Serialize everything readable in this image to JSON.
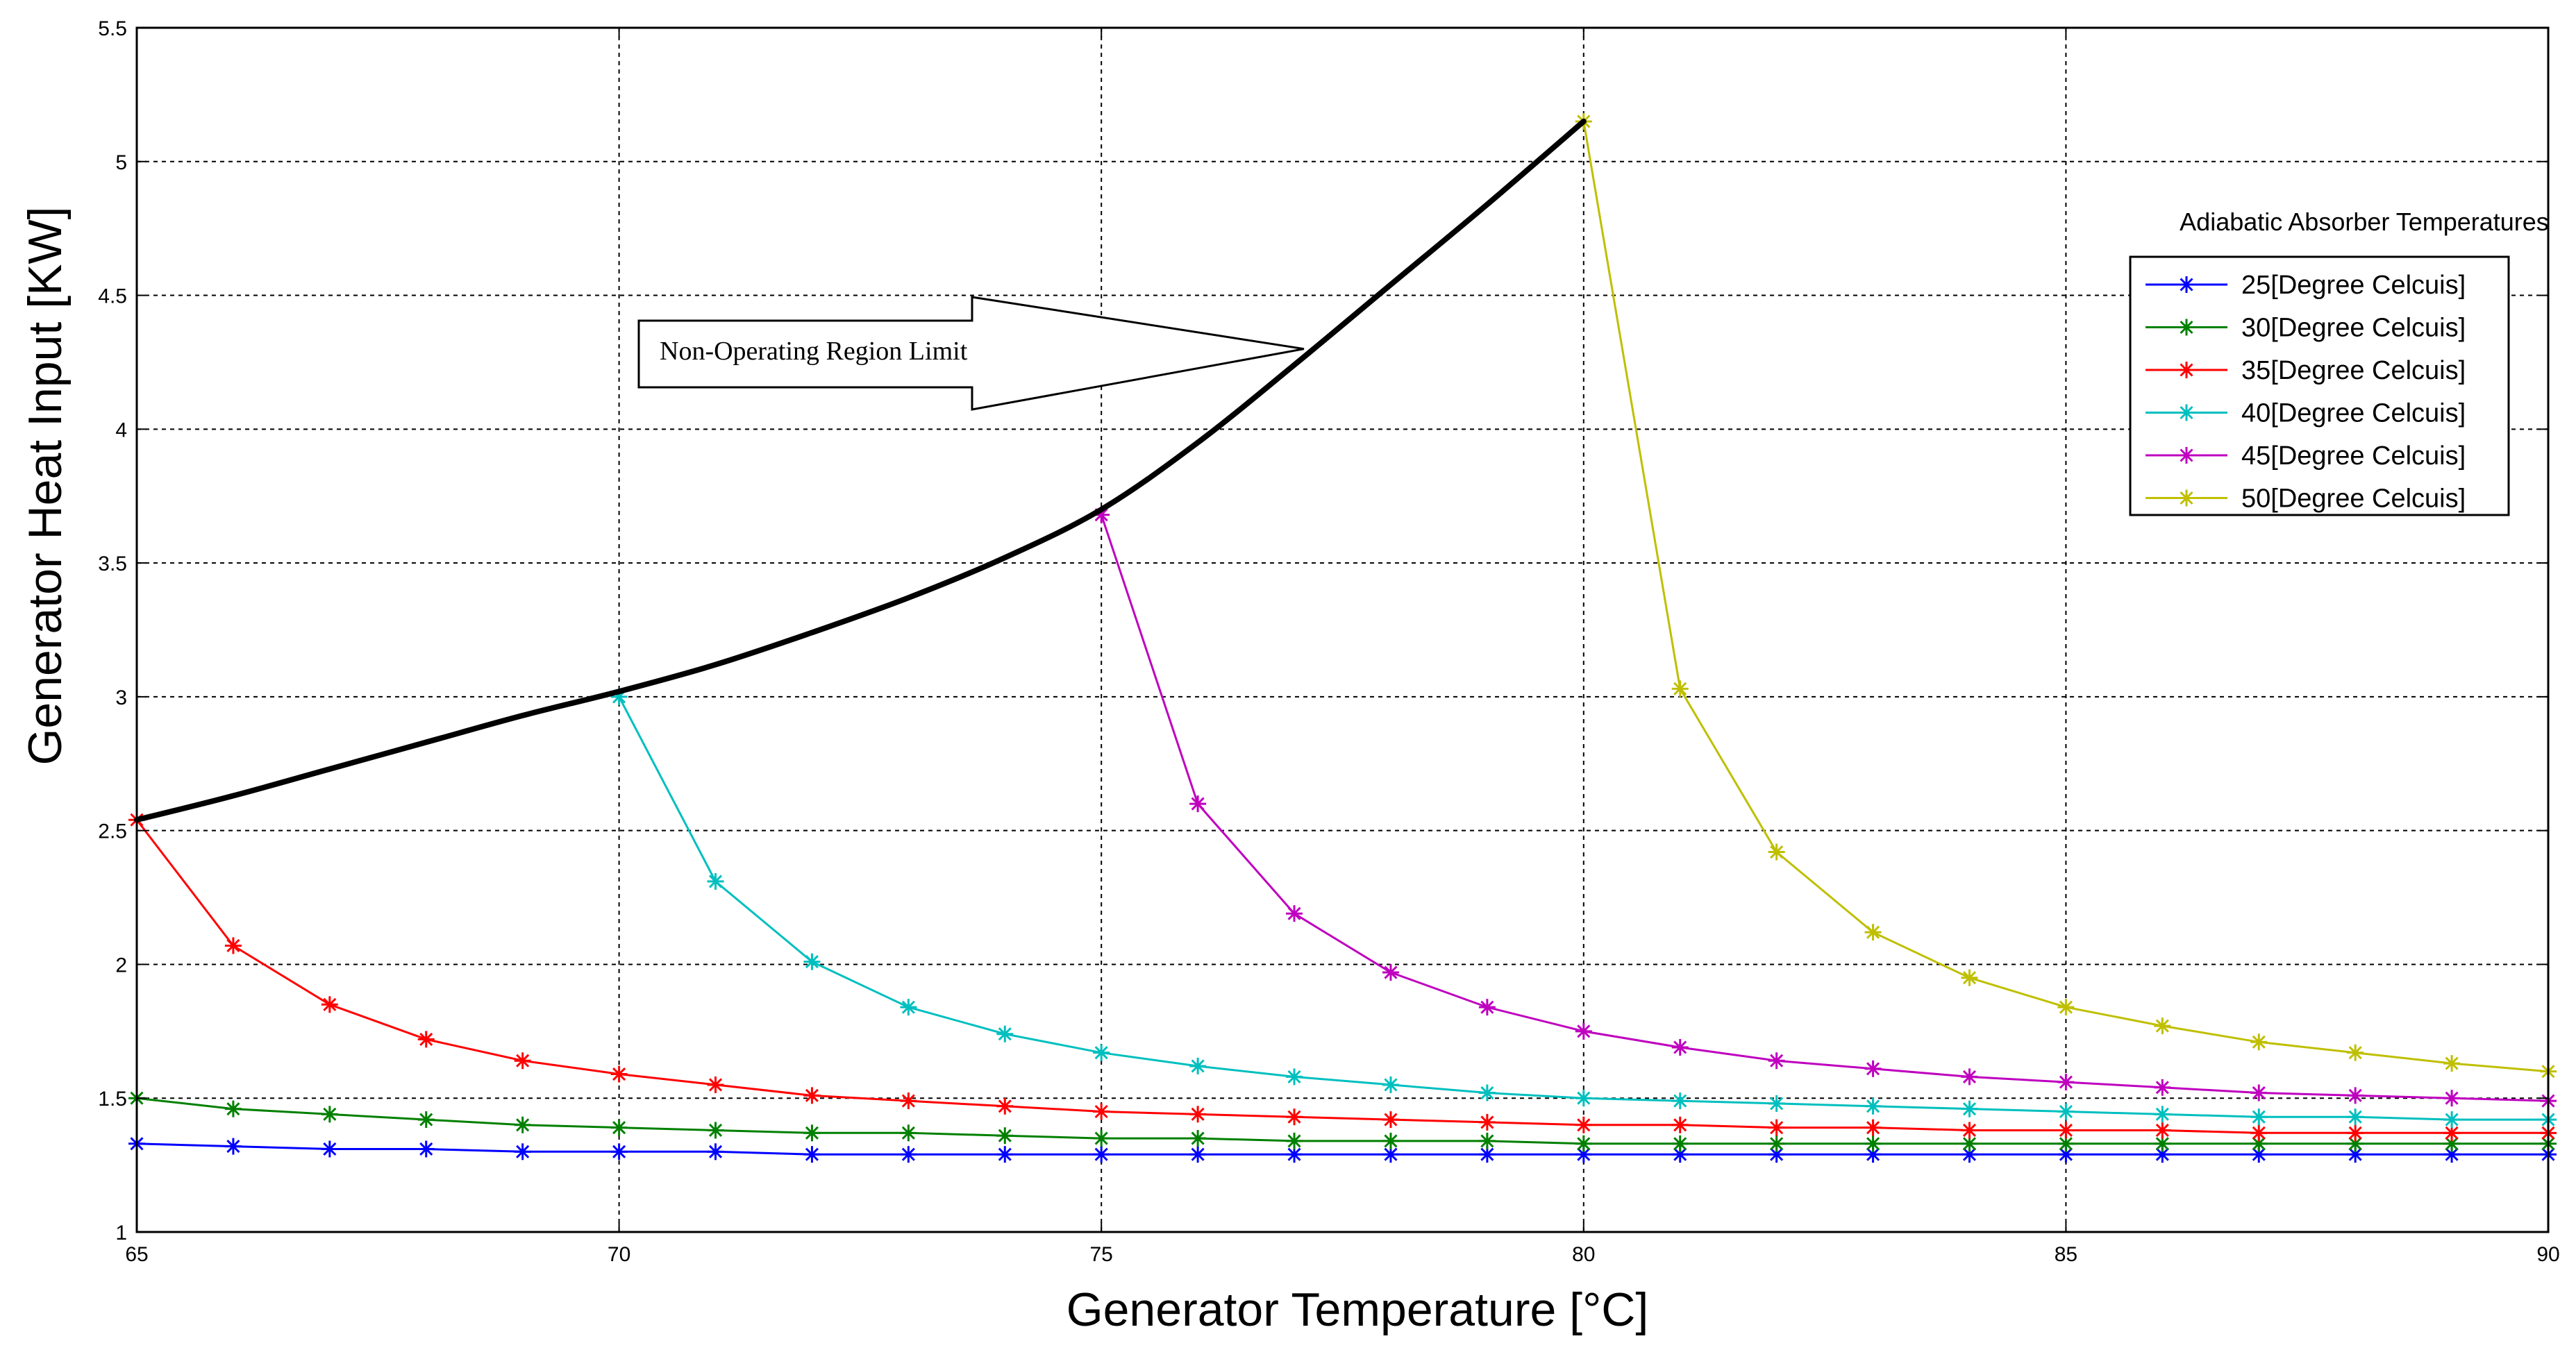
{
  "chart_data": {
    "type": "line",
    "title": "",
    "xlabel": "Generator Temperature [°C]",
    "ylabel": "Generator Heat Input [KW]",
    "xlim": [
      65,
      90
    ],
    "ylim": [
      1,
      5.5
    ],
    "xticks": [
      65,
      70,
      75,
      80,
      85,
      90
    ],
    "yticks": [
      1,
      1.5,
      2,
      2.5,
      3,
      3.5,
      4,
      4.5,
      5,
      5.5
    ],
    "xtick_labels": [
      "65",
      "70",
      "75",
      "80",
      "85",
      "90"
    ],
    "ytick_labels": [
      "1",
      "1.5",
      "2",
      "2.5",
      "3",
      "3.5",
      "4",
      "4.5",
      "5",
      "5.5"
    ],
    "grid": true,
    "legend_title": "Adiabatic Absorber Temperatures",
    "legend_position": "right",
    "series": [
      {
        "name": "25[Degree Celcuis]",
        "color": "#0000ff",
        "marker": "asterisk",
        "x": [
          65,
          66,
          67,
          68,
          69,
          70,
          71,
          72,
          73,
          74,
          75,
          76,
          77,
          78,
          79,
          80,
          81,
          82,
          83,
          84,
          85,
          86,
          87,
          88,
          89,
          90
        ],
        "y": [
          1.33,
          1.32,
          1.31,
          1.31,
          1.3,
          1.3,
          1.3,
          1.29,
          1.29,
          1.29,
          1.29,
          1.29,
          1.29,
          1.29,
          1.29,
          1.29,
          1.29,
          1.29,
          1.29,
          1.29,
          1.29,
          1.29,
          1.29,
          1.29,
          1.29,
          1.29
        ]
      },
      {
        "name": "30[Degree Celcuis]",
        "color": "#008000",
        "marker": "asterisk",
        "x": [
          65,
          66,
          67,
          68,
          69,
          70,
          71,
          72,
          73,
          74,
          75,
          76,
          77,
          78,
          79,
          80,
          81,
          82,
          83,
          84,
          85,
          86,
          87,
          88,
          89,
          90
        ],
        "y": [
          1.5,
          1.46,
          1.44,
          1.42,
          1.4,
          1.39,
          1.38,
          1.37,
          1.37,
          1.36,
          1.35,
          1.35,
          1.34,
          1.34,
          1.34,
          1.33,
          1.33,
          1.33,
          1.33,
          1.33,
          1.33,
          1.33,
          1.33,
          1.33,
          1.33,
          1.33
        ]
      },
      {
        "name": "35[Degree Celcuis]",
        "color": "#ff0000",
        "marker": "asterisk",
        "x": [
          65,
          66,
          67,
          68,
          69,
          70,
          71,
          72,
          73,
          74,
          75,
          76,
          77,
          78,
          79,
          80,
          81,
          82,
          83,
          84,
          85,
          86,
          87,
          88,
          89,
          90
        ],
        "y": [
          2.54,
          2.07,
          1.85,
          1.72,
          1.64,
          1.59,
          1.55,
          1.51,
          1.49,
          1.47,
          1.45,
          1.44,
          1.43,
          1.42,
          1.41,
          1.4,
          1.4,
          1.39,
          1.39,
          1.38,
          1.38,
          1.38,
          1.37,
          1.37,
          1.37,
          1.37
        ]
      },
      {
        "name": "40[Degree Celcuis]",
        "color": "#00bfbf",
        "marker": "asterisk",
        "x": [
          70,
          71,
          72,
          73,
          74,
          75,
          76,
          77,
          78,
          79,
          80,
          81,
          82,
          83,
          84,
          85,
          86,
          87,
          88,
          89,
          90
        ],
        "y": [
          3.0,
          2.31,
          2.01,
          1.84,
          1.74,
          1.67,
          1.62,
          1.58,
          1.55,
          1.52,
          1.5,
          1.49,
          1.48,
          1.47,
          1.46,
          1.45,
          1.44,
          1.43,
          1.43,
          1.42,
          1.42
        ]
      },
      {
        "name": "45[Degree Celcuis]",
        "color": "#bf00bf",
        "marker": "asterisk",
        "x": [
          75,
          76,
          77,
          78,
          79,
          80,
          81,
          82,
          83,
          84,
          85,
          86,
          87,
          88,
          89,
          90
        ],
        "y": [
          3.68,
          2.6,
          2.19,
          1.97,
          1.84,
          1.75,
          1.69,
          1.64,
          1.61,
          1.58,
          1.56,
          1.54,
          1.52,
          1.51,
          1.5,
          1.49
        ]
      },
      {
        "name": "50[Degree Celcuis]",
        "color": "#bfbf00",
        "marker": "asterisk",
        "x": [
          80,
          81,
          82,
          83,
          84,
          85,
          86,
          87,
          88,
          89,
          90
        ],
        "y": [
          5.15,
          3.03,
          2.42,
          2.12,
          1.95,
          1.84,
          1.77,
          1.71,
          1.67,
          1.63,
          1.6
        ]
      }
    ],
    "limit_curve": {
      "name": "Non-Operating Region Limit",
      "color": "#000000",
      "x": [
        65,
        66,
        67,
        68,
        69,
        70,
        71,
        72,
        73,
        74,
        75,
        76,
        77,
        78,
        79,
        80
      ],
      "y": [
        2.54,
        2.63,
        2.73,
        2.83,
        2.93,
        3.02,
        3.12,
        3.24,
        3.37,
        3.52,
        3.7,
        3.95,
        4.24,
        4.54,
        4.84,
        5.15
      ]
    },
    "annotations": [
      {
        "text": "Non-Operating Region Limit",
        "shape": "arrow",
        "points_to": {
          "x": 77.1,
          "y": 4.3
        }
      }
    ]
  }
}
